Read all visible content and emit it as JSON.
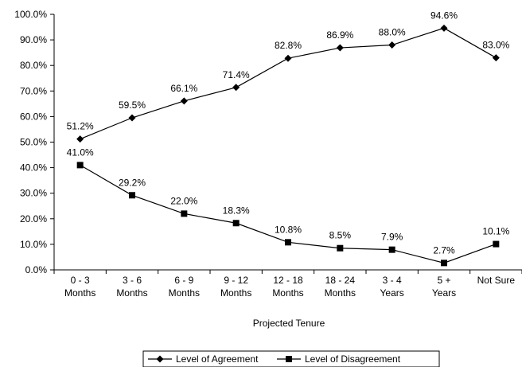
{
  "chart_data": {
    "type": "line",
    "xlabel": "Projected Tenure",
    "categories": [
      [
        "0 - 3",
        "Months"
      ],
      [
        "3 - 6",
        "Months"
      ],
      [
        "6 - 9",
        "Months"
      ],
      [
        "9 - 12",
        "Months"
      ],
      [
        "12 - 18",
        "Months"
      ],
      [
        "18 - 24",
        "Months"
      ],
      [
        "3 - 4",
        "Years"
      ],
      [
        "5 +",
        "Years"
      ],
      [
        "Not Sure"
      ]
    ],
    "ylim": [
      0,
      100
    ],
    "yticks": [
      "0.0%",
      "10.0%",
      "20.0%",
      "30.0%",
      "40.0%",
      "50.0%",
      "60.0%",
      "70.0%",
      "80.0%",
      "90.0%",
      "100.0%"
    ],
    "grid": false,
    "legend": "bottom-center",
    "series": [
      {
        "name": "Level of Agreement",
        "marker": "diamond",
        "color": "#000000",
        "values": [
          51.2,
          59.5,
          66.1,
          71.4,
          82.8,
          86.9,
          88.0,
          94.6,
          83.0
        ],
        "labels": [
          "51.2%",
          "59.5%",
          "66.1%",
          "71.4%",
          "82.8%",
          "86.9%",
          "88.0%",
          "94.6%",
          "83.0%"
        ]
      },
      {
        "name": "Level of Disagreement",
        "marker": "square",
        "color": "#000000",
        "values": [
          41.0,
          29.2,
          22.0,
          18.3,
          10.8,
          8.5,
          7.9,
          2.7,
          10.1
        ],
        "labels": [
          "41.0%",
          "29.2%",
          "22.0%",
          "18.3%",
          "10.8%",
          "8.5%",
          "7.9%",
          "2.7%",
          "10.1%"
        ]
      }
    ]
  }
}
